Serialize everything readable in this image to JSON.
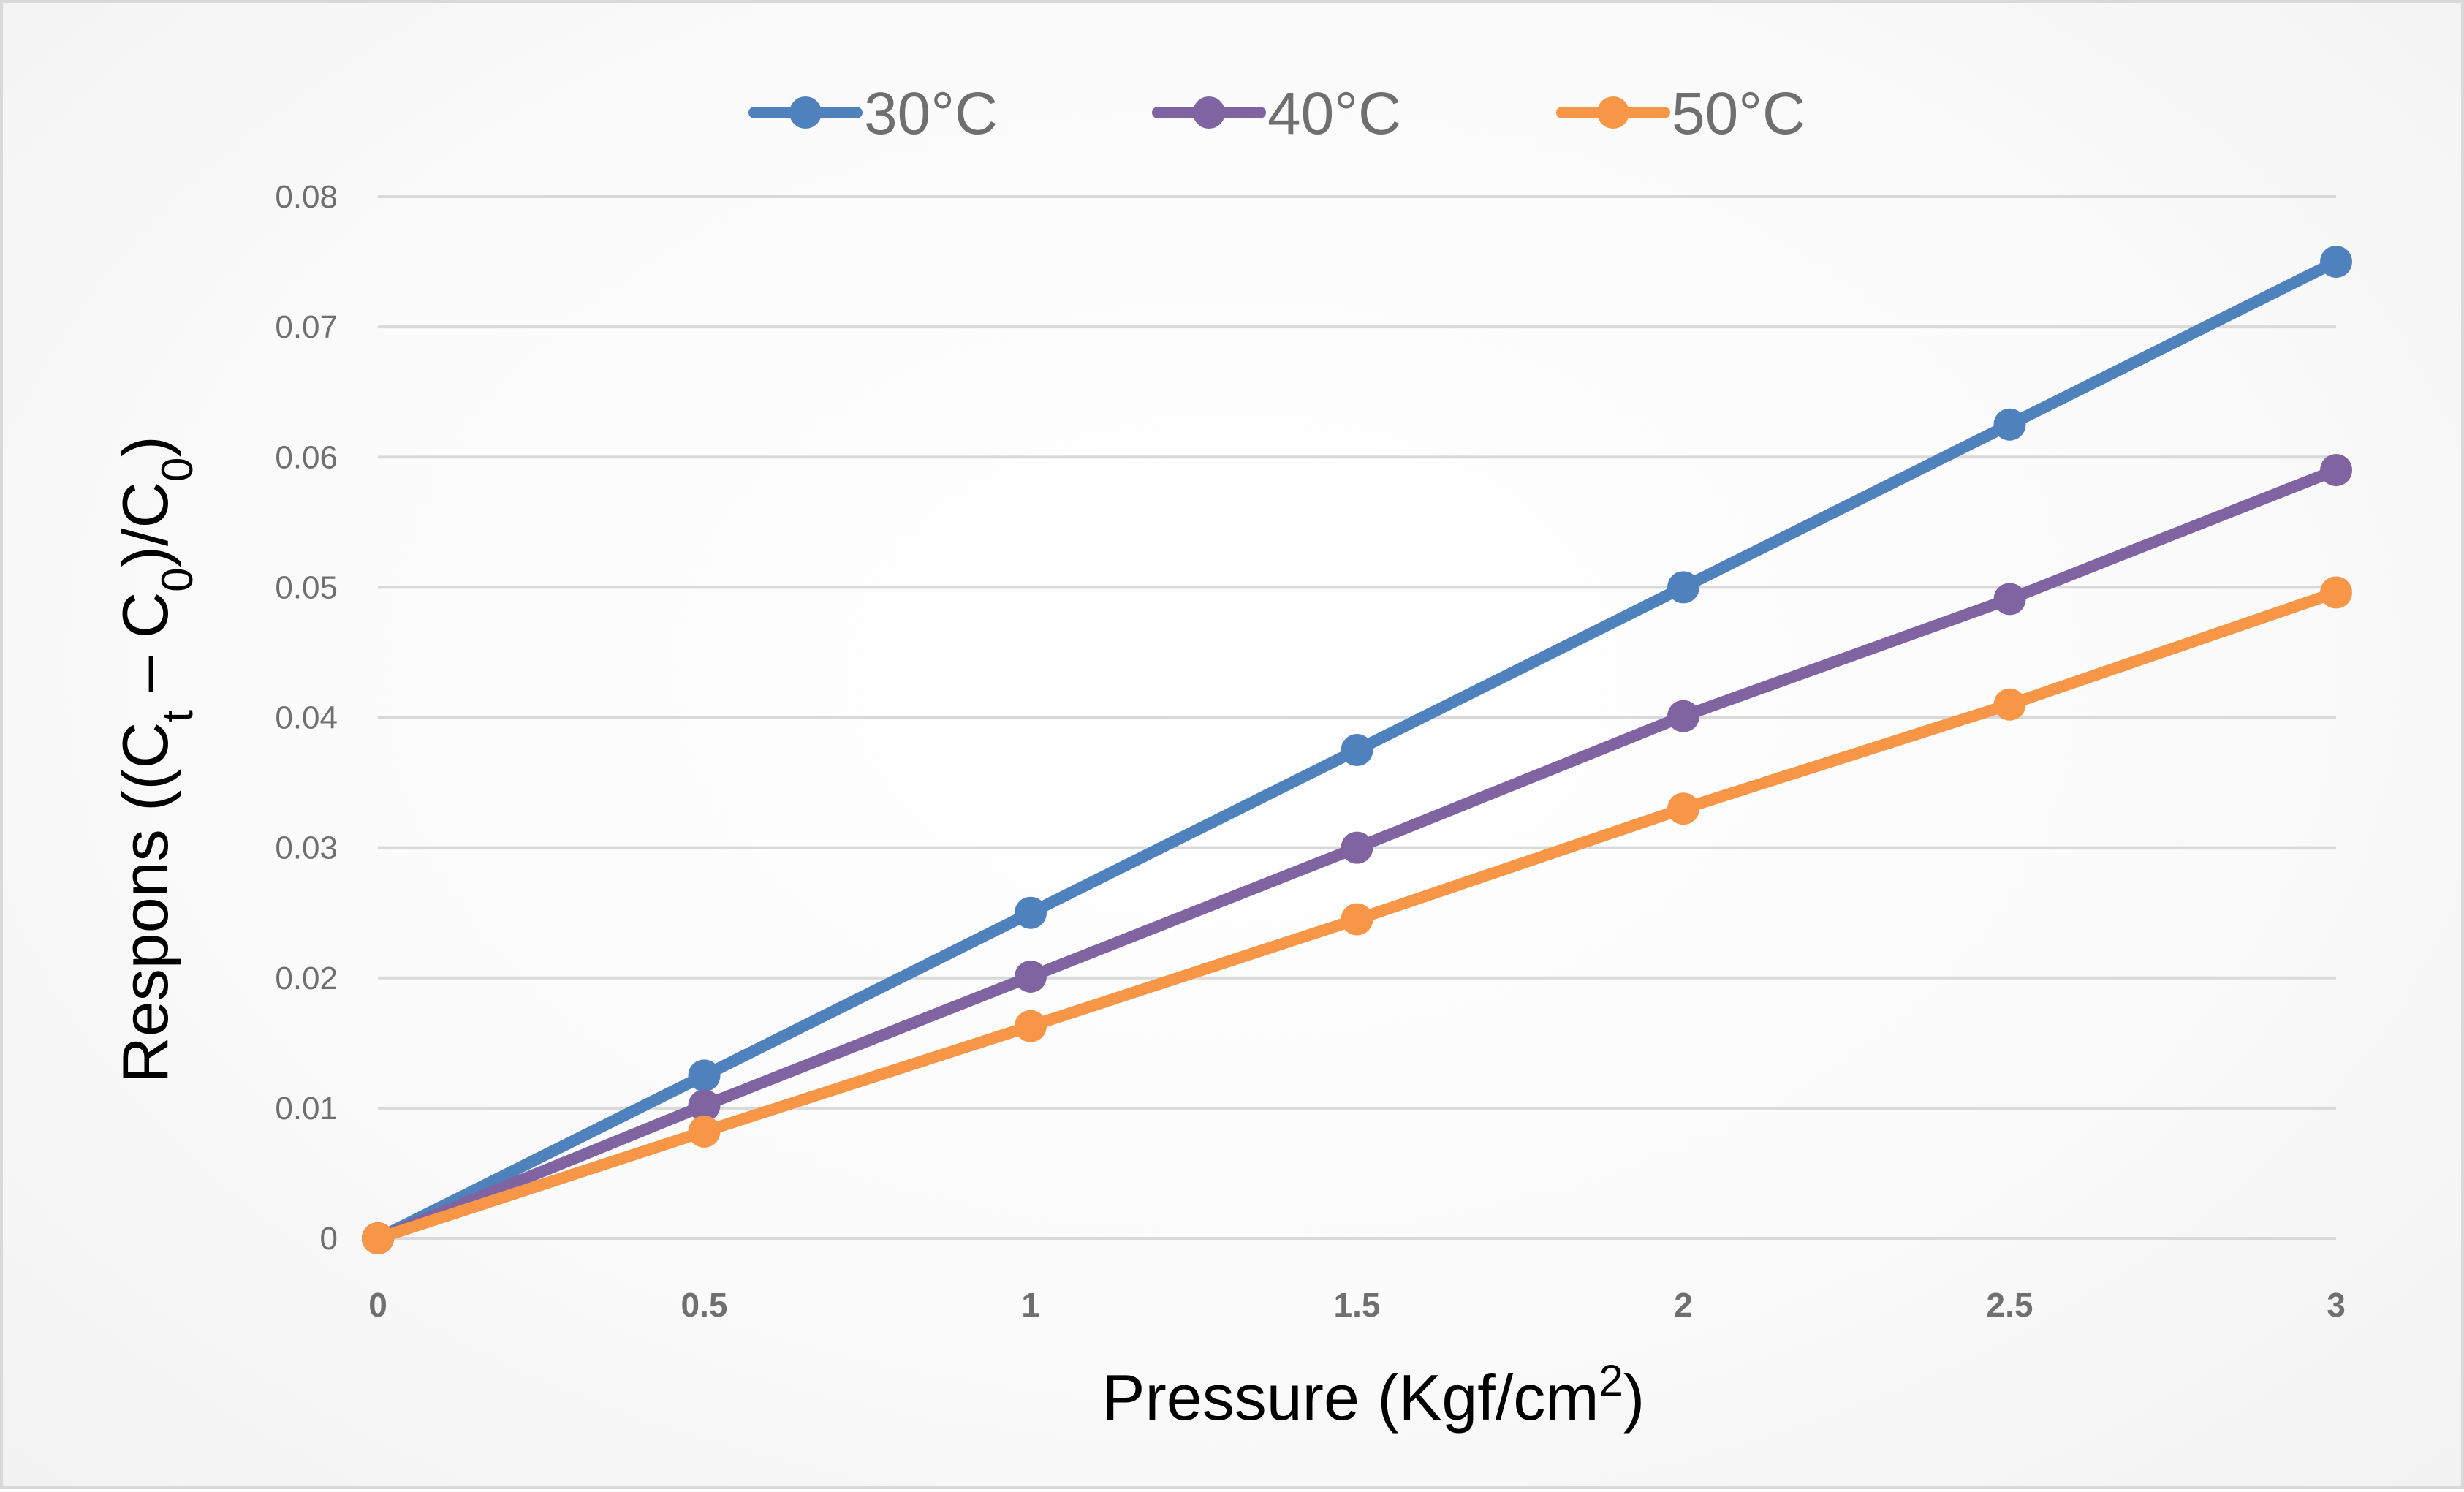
{
  "chart_data": {
    "type": "line",
    "title": "",
    "xlabel": {
      "main": "Pressure  (Kgf/cm",
      "sup": "2",
      "end": ")"
    },
    "ylabel": {
      "prefix": "Respons  ((C",
      "sub1": "t",
      "mid": " – C",
      "sub2": "0",
      "mid2": ")/C",
      "sub3": "0",
      "end": ")"
    },
    "x": [
      0,
      0.5,
      1,
      1.5,
      2,
      2.5,
      3
    ],
    "x_tick_labels": [
      "0",
      "0.5",
      "1",
      "1.5",
      "2",
      "2.5",
      "3"
    ],
    "xlim": [
      0,
      3
    ],
    "ylim": [
      0,
      0.08
    ],
    "y_ticks": [
      0,
      0.01,
      0.02,
      0.03,
      0.04,
      0.05,
      0.06,
      0.07,
      0.08
    ],
    "y_tick_labels": [
      "0",
      "0.01",
      "0.02",
      "0.03",
      "0.04",
      "0.05",
      "0.06",
      "0.07",
      "0.08"
    ],
    "grid": "horizontal",
    "legend_position": "top-center",
    "series": [
      {
        "name": "30°C",
        "color": "#4f81bd",
        "values": [
          0,
          0.0125,
          0.025,
          0.0375,
          0.05,
          0.0625,
          0.075
        ]
      },
      {
        "name": "40°C",
        "color": "#8064a2",
        "values": [
          0,
          0.0102,
          0.0201,
          0.03,
          0.0401,
          0.0491,
          0.059
        ]
      },
      {
        "name": "50°C",
        "color": "#f79646",
        "values": [
          0,
          0.0082,
          0.0163,
          0.0245,
          0.033,
          0.041,
          0.0496
        ]
      }
    ]
  }
}
